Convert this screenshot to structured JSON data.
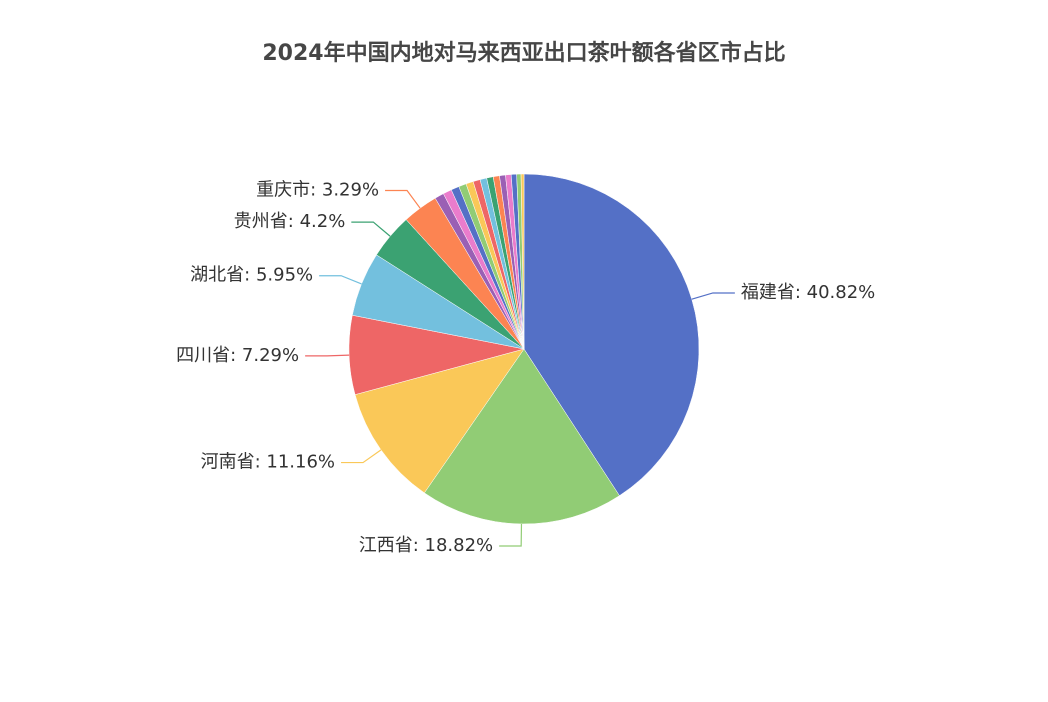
{
  "chart_data": {
    "type": "pie",
    "title": "2024年中国内地对马来西亚出口茶叶额各省区市占比",
    "values": [
      40.82,
      18.82,
      11.16,
      7.29,
      5.95,
      4.2,
      3.29,
      0.85,
      0.8,
      0.75,
      0.7,
      0.68,
      0.65,
      0.62,
      0.6,
      0.58,
      0.55,
      0.52,
      0.5,
      0.4,
      0.27
    ],
    "value_labels": [
      "福建省: 40.82%",
      "江西省: 18.82%",
      "河南省: 11.16%",
      "四川省: 7.29%",
      "湖北省: 5.95%",
      "贵州省: 4.2%",
      "重庆市: 3.29%",
      null,
      null,
      null,
      null,
      null,
      null,
      null,
      null,
      null,
      null,
      null,
      null,
      null,
      null
    ],
    "colors": [
      "#5470c6",
      "#91cc75",
      "#fac858",
      "#ee6666",
      "#73c0de",
      "#3ba272",
      "#fc8452",
      "#9a60b4",
      "#ea7ccc"
    ]
  }
}
